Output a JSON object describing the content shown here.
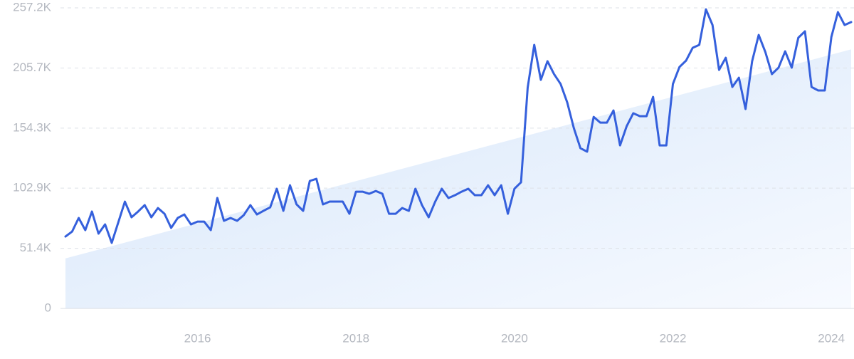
{
  "chart_data": {
    "type": "line",
    "x": [
      2014.333,
      2014.417,
      2014.5,
      2014.583,
      2014.667,
      2014.75,
      2014.833,
      2014.917,
      2015.0,
      2015.083,
      2015.167,
      2015.25,
      2015.333,
      2015.417,
      2015.5,
      2015.583,
      2015.667,
      2015.75,
      2015.833,
      2015.917,
      2016.0,
      2016.083,
      2016.167,
      2016.25,
      2016.333,
      2016.417,
      2016.5,
      2016.583,
      2016.667,
      2016.75,
      2016.833,
      2016.917,
      2017.0,
      2017.083,
      2017.167,
      2017.25,
      2017.333,
      2017.417,
      2017.5,
      2017.583,
      2017.667,
      2017.75,
      2017.833,
      2017.917,
      2018.0,
      2018.083,
      2018.167,
      2018.25,
      2018.333,
      2018.417,
      2018.5,
      2018.583,
      2018.667,
      2018.75,
      2018.833,
      2018.917,
      2019.0,
      2019.083,
      2019.167,
      2019.25,
      2019.333,
      2019.417,
      2019.5,
      2019.583,
      2019.667,
      2019.75,
      2019.833,
      2019.917,
      2020.0,
      2020.083,
      2020.167,
      2020.25,
      2020.333,
      2020.417,
      2020.5,
      2020.583,
      2020.667,
      2020.75,
      2020.833,
      2020.917,
      2021.0,
      2021.083,
      2021.167,
      2021.25,
      2021.333,
      2021.417,
      2021.5,
      2021.583,
      2021.667,
      2021.75,
      2021.833,
      2021.917,
      2022.0,
      2022.083,
      2022.167,
      2022.25,
      2022.333,
      2022.417,
      2022.5,
      2022.583,
      2022.667,
      2022.75,
      2022.833,
      2022.917,
      2023.0,
      2023.083,
      2023.167,
      2023.25,
      2023.333,
      2023.417,
      2023.5,
      2023.583,
      2023.667,
      2023.75,
      2023.833,
      2023.917,
      2024.0,
      2024.083,
      2024.167,
      2024.25
    ],
    "series": [
      {
        "color": "#3560dc",
        "values": [
          61.5,
          65.8,
          77.4,
          67.0,
          82.9,
          64.0,
          71.9,
          56.1,
          73.7,
          91.4,
          78.0,
          82.9,
          88.4,
          78.0,
          85.9,
          81.0,
          68.9,
          77.4,
          80.4,
          71.9,
          74.3,
          74.3,
          67.0,
          94.5,
          75.0,
          77.4,
          75.0,
          79.8,
          88.4,
          80.4,
          83.5,
          86.5,
          102.4,
          83.5,
          105.4,
          89.0,
          83.5,
          109.1,
          110.9,
          89.0,
          91.4,
          91.4,
          91.4,
          81.0,
          99.9,
          99.9,
          98.1,
          100.5,
          98.1,
          81.0,
          81.0,
          85.9,
          83.5,
          102.4,
          88.4,
          78.0,
          91.4,
          102.4,
          94.5,
          96.9,
          99.9,
          102.4,
          96.9,
          96.9,
          105.4,
          96.9,
          105.4,
          81.0,
          102.4,
          107.9,
          188.9,
          225.5,
          195.6,
          211.5,
          200.5,
          192.0,
          176.1,
          154.2,
          137.1,
          134.1,
          163.9,
          159.0,
          159.0,
          169.4,
          139.5,
          156.0,
          167.0,
          164.5,
          164.5,
          181.0,
          139.5,
          139.5,
          192.0,
          206.6,
          212.1,
          223.0,
          225.5,
          255.9,
          242.5,
          204.1,
          214.5,
          189.5,
          197.4,
          170.6,
          211.5,
          234.0,
          219.4,
          200.5,
          206.0,
          220.0,
          206.0,
          231.6,
          237.1,
          189.5,
          186.5,
          186.5,
          232.2,
          253.5,
          242.5,
          245.0
        ]
      }
    ],
    "trend": {
      "color": "#dbe9fb",
      "x": [
        2014.333,
        2024.25
      ],
      "values": [
        42.8,
        221.7
      ]
    },
    "xlim": [
      2014.333,
      2024.25
    ],
    "xticks": [
      2016,
      2018,
      2020,
      2022,
      2024
    ],
    "ylim": [
      0,
      257.2
    ],
    "yticks": [
      0,
      {
        "value": 51.4,
        "label": "51.4K"
      },
      {
        "value": 102.9,
        "label": "102.9K"
      },
      {
        "value": 154.3,
        "label": "154.3K"
      },
      {
        "value": 205.7,
        "label": "205.7K"
      },
      {
        "value": 257.2,
        "label": "257.2K"
      }
    ],
    "grid": true
  }
}
